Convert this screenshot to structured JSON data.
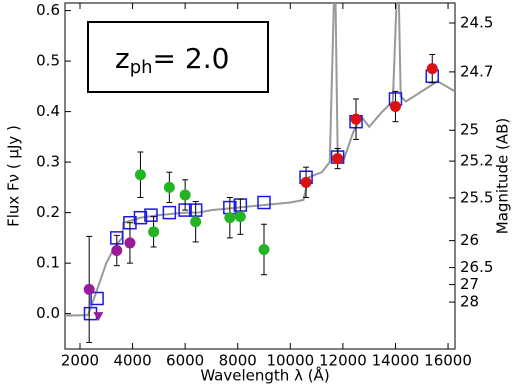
{
  "chart_data": {
    "type": "sed",
    "xlabel": "Wavelength  λ (Å)",
    "ylabel": "Flux  Fν  ( μJy )",
    "y2label": "Magnitude (AB)",
    "annotation": {
      "base": "z",
      "sub": "ph",
      "rest": "= 2.0"
    },
    "xlim": [
      1430,
      16265
    ],
    "ylim": [
      -0.07,
      0.615
    ],
    "xticks": [
      2000,
      4000,
      6000,
      8000,
      10000,
      12000,
      14000,
      16000
    ],
    "yticks": [
      {
        "value": 0,
        "label": "0.0"
      },
      0.1,
      0.2,
      0.3,
      0.4,
      0.5,
      0.6
    ],
    "y2scale": "ab-magnitude",
    "y2ticks": [
      24.5,
      24.7,
      25,
      25.2,
      25.5,
      26,
      26.5,
      27,
      28
    ],
    "series": [
      {
        "kind": "line",
        "color": "#999999",
        "x": [
          1430,
          2300,
          2600,
          3000,
          3300,
          3600,
          3650,
          4000,
          4300,
          5000,
          6000,
          6500,
          7000,
          8000,
          9000,
          10000,
          10500,
          10700,
          11200,
          11500,
          11700,
          11800,
          12000,
          12400,
          12700,
          13000,
          13500,
          13900,
          14100,
          14200,
          14400,
          15000,
          15600,
          16265
        ],
        "values": [
          -0.004,
          -0.003,
          0.04,
          0.1,
          0.13,
          0.15,
          0.18,
          0.185,
          0.19,
          0.195,
          0.2,
          0.2,
          0.205,
          0.21,
          0.215,
          0.22,
          0.225,
          0.27,
          0.28,
          0.3,
          0.7,
          0.32,
          0.3,
          0.36,
          0.39,
          0.37,
          0.4,
          0.42,
          0.7,
          0.43,
          0.42,
          0.44,
          0.46,
          0.44
        ]
      },
      {
        "kind": "square",
        "color": "#1a1adb",
        "x": [
          2400,
          2650,
          3400,
          3900,
          4300,
          4700,
          5400,
          6000,
          6400,
          7700,
          8100,
          9000,
          10600,
          11800,
          12500,
          14000,
          15400
        ],
        "values": [
          0.0,
          0.03,
          0.15,
          0.18,
          0.19,
          0.195,
          0.2,
          0.205,
          0.205,
          0.21,
          0.215,
          0.22,
          0.27,
          0.31,
          0.38,
          0.425,
          0.47
        ]
      },
      {
        "kind": "circle",
        "color": "#9b1a9b",
        "x": [
          2350,
          3400,
          3900
        ],
        "values": [
          0.048,
          0.125,
          0.14
        ],
        "errors": [
          0.105,
          0.03,
          0.04
        ]
      },
      {
        "kind": "triangle",
        "color": "#9b1a9b",
        "x": [
          2700
        ],
        "values": [
          -0.005
        ]
      },
      {
        "kind": "circle",
        "color": "#22b422",
        "x": [
          4300,
          4800,
          5400,
          6000,
          6400,
          7700,
          8100,
          9000
        ],
        "values": [
          0.275,
          0.162,
          0.25,
          0.235,
          0.182,
          0.19,
          0.192,
          0.127
        ],
        "errors": [
          0.045,
          0.03,
          0.03,
          0.03,
          0.04,
          0.04,
          0.035,
          0.05
        ]
      },
      {
        "kind": "circle",
        "color": "#dd1111",
        "x": [
          10600,
          11800,
          12500,
          14000,
          15400
        ],
        "values": [
          0.26,
          0.307,
          0.385,
          0.41,
          0.485
        ],
        "errors": [
          0.03,
          0.02,
          0.04,
          0.03,
          0.028
        ]
      }
    ]
  }
}
